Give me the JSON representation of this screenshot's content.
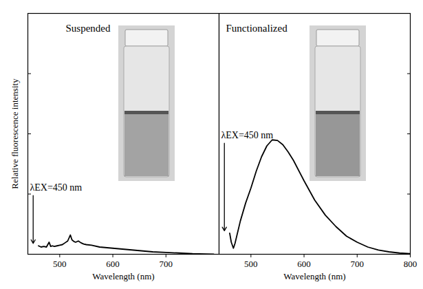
{
  "chart_data": [
    {
      "type": "line",
      "title": "Suspended",
      "xlabel": "Wavelength (nm)",
      "ylabel": "Relative fluorescence intensity",
      "x": [
        460,
        465,
        470,
        475,
        480,
        483,
        486,
        490,
        495,
        500,
        505,
        510,
        515,
        520,
        523,
        527,
        530,
        535,
        540,
        545,
        550,
        560,
        575,
        600,
        625,
        650,
        675,
        700,
        725,
        750,
        775,
        790
      ],
      "values": [
        0.14,
        0.12,
        0.13,
        0.12,
        0.2,
        0.13,
        0.14,
        0.13,
        0.14,
        0.15,
        0.16,
        0.19,
        0.22,
        0.32,
        0.24,
        0.21,
        0.2,
        0.22,
        0.19,
        0.17,
        0.16,
        0.15,
        0.12,
        0.1,
        0.08,
        0.06,
        0.04,
        0.03,
        0.02,
        0.01,
        0.005,
        0
      ],
      "color": "#000000",
      "xlim": [
        440,
        800
      ],
      "xticks": [
        500,
        600,
        700
      ],
      "ylim": [
        0,
        4
      ],
      "yticks": [
        1,
        2,
        3
      ],
      "tick_labels": "x",
      "grid": false,
      "annotations": [
        {
          "text": "λEX=450 nm",
          "x": 450
        }
      ]
    },
    {
      "type": "line",
      "title": "Functionalized",
      "xlabel": "Wavelength (nm)",
      "x": [
        460,
        463,
        467,
        470,
        480,
        490,
        500,
        510,
        520,
        530,
        540,
        550,
        560,
        570,
        580,
        600,
        620,
        640,
        660,
        680,
        700,
        720,
        740,
        760,
        780,
        800
      ],
      "values": [
        0.35,
        0.2,
        0.1,
        0.18,
        0.55,
        0.85,
        1.1,
        1.38,
        1.62,
        1.8,
        1.9,
        1.89,
        1.82,
        1.7,
        1.56,
        1.22,
        0.9,
        0.65,
        0.46,
        0.3,
        0.2,
        0.12,
        0.07,
        0.04,
        0.02,
        0.01
      ],
      "color": "#000000",
      "xlim": [
        440,
        800
      ],
      "xticks": [
        500,
        600,
        700,
        800
      ],
      "ylim": [
        0,
        4
      ],
      "yticks": [
        1,
        2,
        3
      ],
      "tick_labels": "x",
      "grid": false,
      "annotations": [
        {
          "text": "λEX=450 nm",
          "x": 450
        }
      ]
    }
  ]
}
